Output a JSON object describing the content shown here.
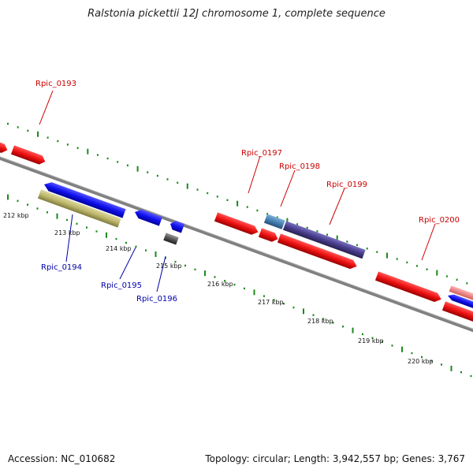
{
  "title": "Ralstonia pickettii 12J chromosome 1, complete sequence",
  "footer": {
    "accession": "Accession: NC_010682",
    "summary": "Topology: circular; Length: 3,942,557 bp; Genes: 3,767"
  },
  "colors": {
    "forward_label": "#cc0000",
    "reverse_label": "#0000aa",
    "backbone": "#808080",
    "ticks": "#1a8a1a",
    "gene_red": "#ee1111",
    "gene_blue": "#1111ee",
    "gene_khaki": "#bdb76b",
    "gene_gray": "#555555",
    "gene_steel": "#4682b4",
    "gene_slate": "#483d8b",
    "gene_pink": "#f08080"
  },
  "kbp_labels": [
    "212 kbp",
    "213 kbp",
    "214 kbp",
    "215 kbp",
    "216 kbp",
    "217 kbp",
    "218 kbp",
    "219 kbp",
    "220 kbp"
  ],
  "gene_labels": {
    "Rpic_0193": "Rpic_0193",
    "Rpic_0194": "Rpic_0194",
    "Rpic_0195": "Rpic_0195",
    "Rpic_0196": "Rpic_0196",
    "Rpic_0197": "Rpic_0197",
    "Rpic_0198": "Rpic_0198",
    "Rpic_0199": "Rpic_0199",
    "Rpic_0200": "Rpic_0200"
  }
}
